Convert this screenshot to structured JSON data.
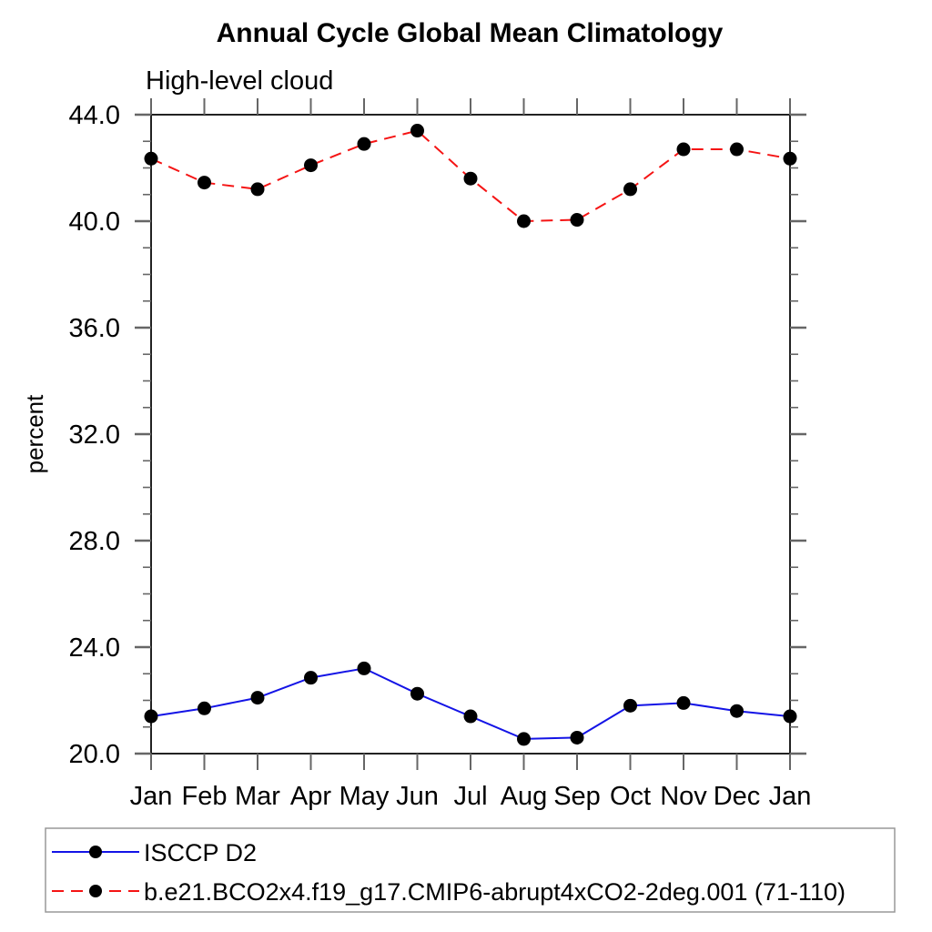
{
  "window": {
    "background": "#ffffff"
  },
  "header": {
    "title": "Annual Cycle Global Mean Climatology",
    "subtitle": "High-level cloud"
  },
  "chart_data": {
    "type": "line",
    "title": "Annual Cycle Global Mean Climatology",
    "subtitle": "High-level cloud",
    "xlabel": "",
    "ylabel": "percent",
    "ylim": [
      20.0,
      44.0
    ],
    "y_major_ticks": [
      20.0,
      24.0,
      28.0,
      32.0,
      36.0,
      40.0,
      44.0
    ],
    "y_tick_labels": [
      "20.0",
      "24.0",
      "28.0",
      "32.0",
      "36.0",
      "40.0",
      "44.0"
    ],
    "y_minor_step": 1.0,
    "grid": false,
    "x_categories": [
      "Jan",
      "Feb",
      "Mar",
      "Apr",
      "May",
      "Jun",
      "Jul",
      "Aug",
      "Sep",
      "Oct",
      "Nov",
      "Dec",
      "Jan"
    ],
    "legend_position": "bottom-left boxed",
    "axis_color": "#222222",
    "tick_color": "#666666",
    "legend_border_color": "#999999",
    "series": [
      {
        "name": "ISCCP D2",
        "color": "#1414e6",
        "line_style": "solid",
        "marker": "filled-circle",
        "marker_color": "#000000",
        "values": [
          21.4,
          21.7,
          22.1,
          22.85,
          23.2,
          22.25,
          21.4,
          20.55,
          20.6,
          21.8,
          21.9,
          21.6,
          21.4
        ]
      },
      {
        "name": "b.e21.BCO2x4.f19_g17.CMIP6-abrupt4xCO2-2deg.001 (71-110)",
        "color": "#f51414",
        "line_style": "dashed",
        "marker": "filled-circle",
        "marker_color": "#000000",
        "values": [
          42.35,
          41.45,
          41.2,
          42.1,
          42.9,
          43.4,
          41.6,
          40.0,
          40.05,
          41.2,
          42.7,
          42.7,
          42.35
        ]
      }
    ]
  }
}
